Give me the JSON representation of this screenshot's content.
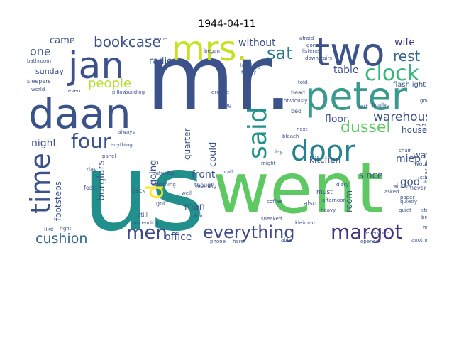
{
  "title": "1944-04-11",
  "words": [
    {
      "text": "mr.",
      "color": "#3b528b"
    },
    {
      "text": "us",
      "color": "#21908d"
    },
    {
      "text": "went",
      "color": "#5ec962"
    },
    {
      "text": "peter",
      "color": "#3a9a8e"
    },
    {
      "text": "daan",
      "color": "#3b528b"
    },
    {
      "text": "two",
      "color": "#3b528b"
    },
    {
      "text": "jan",
      "color": "#3b528b"
    },
    {
      "text": "mrs.",
      "color": "#c8e020"
    },
    {
      "text": "door",
      "color": "#26828e"
    },
    {
      "text": "clock",
      "color": "#35b779"
    },
    {
      "text": "said",
      "color": "#21918c"
    },
    {
      "text": "time",
      "color": "#3b528b"
    },
    {
      "text": "margot",
      "color": "#46327e"
    },
    {
      "text": "everything",
      "color": "#3e4a89"
    },
    {
      "text": "d",
      "color": "#fde725"
    },
    {
      "text": "four",
      "color": "#3b528b"
    },
    {
      "text": "men",
      "color": "#3e4a89"
    },
    {
      "text": "cushion",
      "color": "#31688e"
    },
    {
      "text": "bookcase",
      "color": "#3b528b"
    },
    {
      "text": "dussel",
      "color": "#5ec962"
    },
    {
      "text": "sat",
      "color": "#2a788e"
    },
    {
      "text": "rest",
      "color": "#31688e"
    },
    {
      "text": "warehouse",
      "color": "#3b528b"
    },
    {
      "text": "people",
      "color": "#b5de2b"
    },
    {
      "text": "without",
      "color": "#3b528b"
    },
    {
      "text": "one",
      "color": "#3b528b"
    },
    {
      "text": "came",
      "color": "#3b528b"
    },
    {
      "text": "wife",
      "color": "#46337e"
    },
    {
      "text": "table",
      "color": "#3b528b"
    },
    {
      "text": "radio",
      "color": "#3b528b"
    },
    {
      "text": "sunday",
      "color": "#3b528b"
    },
    {
      "text": "night",
      "color": "#3b528b"
    },
    {
      "text": "floor",
      "color": "#3b528b"
    },
    {
      "text": "kitchen",
      "color": "#3b528b"
    },
    {
      "text": "miep",
      "color": "#3b528b"
    },
    {
      "text": "house",
      "color": "#3b528b"
    },
    {
      "text": "front",
      "color": "#3b528b"
    },
    {
      "text": "office",
      "color": "#3b528b"
    },
    {
      "text": "man",
      "color": "#3b528b"
    },
    {
      "text": "god",
      "color": "#3b528b"
    },
    {
      "text": "way",
      "color": "#3b528b"
    },
    {
      "text": "since",
      "color": "#3b528b"
    },
    {
      "text": "going",
      "color": "#3b528b"
    },
    {
      "text": "could",
      "color": "#3b528b"
    },
    {
      "text": "quarter",
      "color": "#3b528b"
    },
    {
      "text": "burglars",
      "color": "#3b528b"
    },
    {
      "text": "footsteps",
      "color": "#3b528b"
    },
    {
      "text": "room",
      "color": "#3b528b"
    },
    {
      "text": "bathroom",
      "color": "#3b528b"
    },
    {
      "text": "sleepers",
      "color": "#3b528b"
    },
    {
      "text": "landing",
      "color": "#3b528b"
    },
    {
      "text": "finally",
      "color": "#3b528b"
    },
    {
      "text": "flashlight",
      "color": "#3b528b"
    },
    {
      "text": "head",
      "color": "#3b528b"
    },
    {
      "text": "bed",
      "color": "#3b528b"
    },
    {
      "text": "next",
      "color": "#3b528b"
    },
    {
      "text": "must",
      "color": "#3b528b"
    },
    {
      "text": "afternoon",
      "color": "#3b528b"
    },
    {
      "text": "also",
      "color": "#3b528b"
    },
    {
      "text": "kleiman",
      "color": "#3b528b"
    },
    {
      "text": "quietly",
      "color": "#3b528b"
    },
    {
      "text": "quiet",
      "color": "#3b528b"
    },
    {
      "text": "never",
      "color": "#3b528b"
    },
    {
      "text": "would",
      "color": "#3b528b"
    },
    {
      "text": "good",
      "color": "#3b528b"
    },
    {
      "text": "began",
      "color": "#3b528b"
    },
    {
      "text": "someone",
      "color": "#3b528b"
    },
    {
      "text": "afraid",
      "color": "#3b528b"
    },
    {
      "text": "world",
      "color": "#3b528b"
    },
    {
      "text": "even",
      "color": "#3b528b"
    },
    {
      "text": "pillow",
      "color": "#3b528b"
    },
    {
      "text": "building",
      "color": "#3b528b"
    },
    {
      "text": "always",
      "color": "#3b528b"
    },
    {
      "text": "anything",
      "color": "#3b528b"
    },
    {
      "text": "back",
      "color": "#3b528b"
    },
    {
      "text": "though",
      "color": "#3b528b"
    },
    {
      "text": "well",
      "color": "#3b528b"
    },
    {
      "text": "got",
      "color": "#3b528b"
    },
    {
      "text": "like",
      "color": "#3b528b"
    },
    {
      "text": "right",
      "color": "#3b528b"
    },
    {
      "text": "fear",
      "color": "#3b528b"
    },
    {
      "text": "day",
      "color": "#3b528b"
    },
    {
      "text": "still",
      "color": "#3b528b"
    },
    {
      "text": "attic",
      "color": "#3b528b"
    },
    {
      "text": "might",
      "color": "#3b528b"
    },
    {
      "text": "lay",
      "color": "#3b528b"
    },
    {
      "text": "stairs",
      "color": "#3b528b"
    },
    {
      "text": "break-in",
      "color": "#3b528b"
    },
    {
      "text": "paper",
      "color": "#3b528b"
    },
    {
      "text": "made",
      "color": "#3b528b"
    },
    {
      "text": "doors",
      "color": "#3b528b"
    },
    {
      "text": "another",
      "color": "#3b528b"
    },
    {
      "text": "asked",
      "color": "#3b528b"
    },
    {
      "text": "able",
      "color": "#3b528b"
    },
    {
      "text": "hard",
      "color": "#3b528b"
    },
    {
      "text": "phone",
      "color": "#3b528b"
    },
    {
      "text": "ascending",
      "color": "#3b528b"
    },
    {
      "text": "saturday",
      "color": "#3b528b"
    },
    {
      "text": "breathing",
      "color": "#3b528b"
    },
    {
      "text": "morning",
      "color": "#3b528b"
    },
    {
      "text": "window",
      "color": "#3b528b"
    },
    {
      "text": "diary",
      "color": "#3b528b"
    },
    {
      "text": "heavy",
      "color": "#3b528b"
    },
    {
      "text": "coffee",
      "color": "#3b528b"
    },
    {
      "text": "told",
      "color": "#3b528b"
    },
    {
      "text": "obviously",
      "color": "#3b528b"
    },
    {
      "text": "draped",
      "color": "#3b528b"
    },
    {
      "text": "lost",
      "color": "#3b528b"
    },
    {
      "text": "finally",
      "color": "#3b528b"
    },
    {
      "text": "bleach",
      "color": "#3b528b"
    },
    {
      "text": "every",
      "color": "#3b528b"
    },
    {
      "text": "chair",
      "color": "#3b528b"
    },
    {
      "text": "panel",
      "color": "#3b528b"
    },
    {
      "text": "thing",
      "color": "#3b528b"
    },
    {
      "text": "call",
      "color": "#3b528b"
    },
    {
      "text": "opened",
      "color": "#3b528b"
    },
    {
      "text": "everyone",
      "color": "#3b528b"
    },
    {
      "text": "sneaked",
      "color": "#3b528b"
    },
    {
      "text": "stove",
      "color": "#3b528b"
    },
    {
      "text": "bread",
      "color": "#3b528b"
    },
    {
      "text": "gone",
      "color": "#3b528b"
    },
    {
      "text": "listened",
      "color": "#3b528b"
    },
    {
      "text": "downstairs",
      "color": "#3b528b"
    }
  ]
}
